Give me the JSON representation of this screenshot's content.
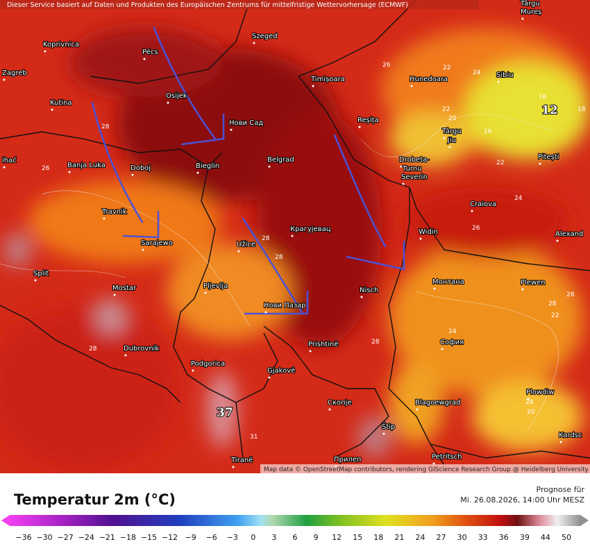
{
  "header_note": "Dieser Service basiert auf Daten und Produkten des Europäischen Zentrums für mittelfristige Wettervorhersage (ECMWF)",
  "attribution": "Map data © OpenStreetMap contributors, rendering GIScience Research Group @ Heidelberg University",
  "cities": [
    "Koprivnica",
    "Pécs",
    "Szeged",
    "Zagreb",
    "Kutina",
    "Osijek",
    "Нови Сад",
    "Timișoara",
    "Hunedoara",
    "Sibiu",
    "Târgu",
    "Mureș",
    "Reșița",
    "Târgu",
    "Jiu",
    "Pitești",
    "Banja Luka",
    "Doboj",
    "Bieglin",
    "Belgrad",
    "Drobeta-",
    "Turnu",
    "Severin",
    "ihać",
    "Craiova",
    "Travnik",
    "Sarajewo",
    "Užice",
    "Крагујевац",
    "Widin",
    "Alexand",
    "Split",
    "Mostar",
    "Pljevlja",
    "Нови Пазар",
    "Nisch",
    "Монтана",
    "Plewen",
    "Dubrovnik",
    "Prishtinë",
    "София",
    "Podgorica",
    "Gjakovë",
    "Скопје",
    "Blagoewgrad",
    "Plowdiw",
    "Štip",
    "Kardsc",
    "Petritsch",
    "Tiranë",
    "Прилеп"
  ],
  "contour_labels": [
    "26",
    "22",
    "24",
    "16",
    "12",
    "18",
    "22",
    "20",
    "16",
    "22",
    "24",
    "26",
    "28",
    "26",
    "28",
    "28",
    "28",
    "28",
    "24",
    "28",
    "22",
    "28",
    "37",
    "31",
    "20",
    "28"
  ],
  "legend": {
    "title": "Temperatur 2m (°C)",
    "forecast_label": "Prognose für",
    "forecast_time": "Mi. 26.08.2026, 14:00 Uhr MESZ",
    "scale_labels": [
      "−36",
      "−30",
      "−27",
      "−24",
      "−21",
      "−18",
      "−15",
      "−12",
      "−9",
      "−6",
      "−3",
      "0",
      "3",
      "6",
      "9",
      "12",
      "15",
      "18",
      "21",
      "24",
      "27",
      "30",
      "33",
      "36",
      "39",
      "44",
      "50"
    ]
  }
}
